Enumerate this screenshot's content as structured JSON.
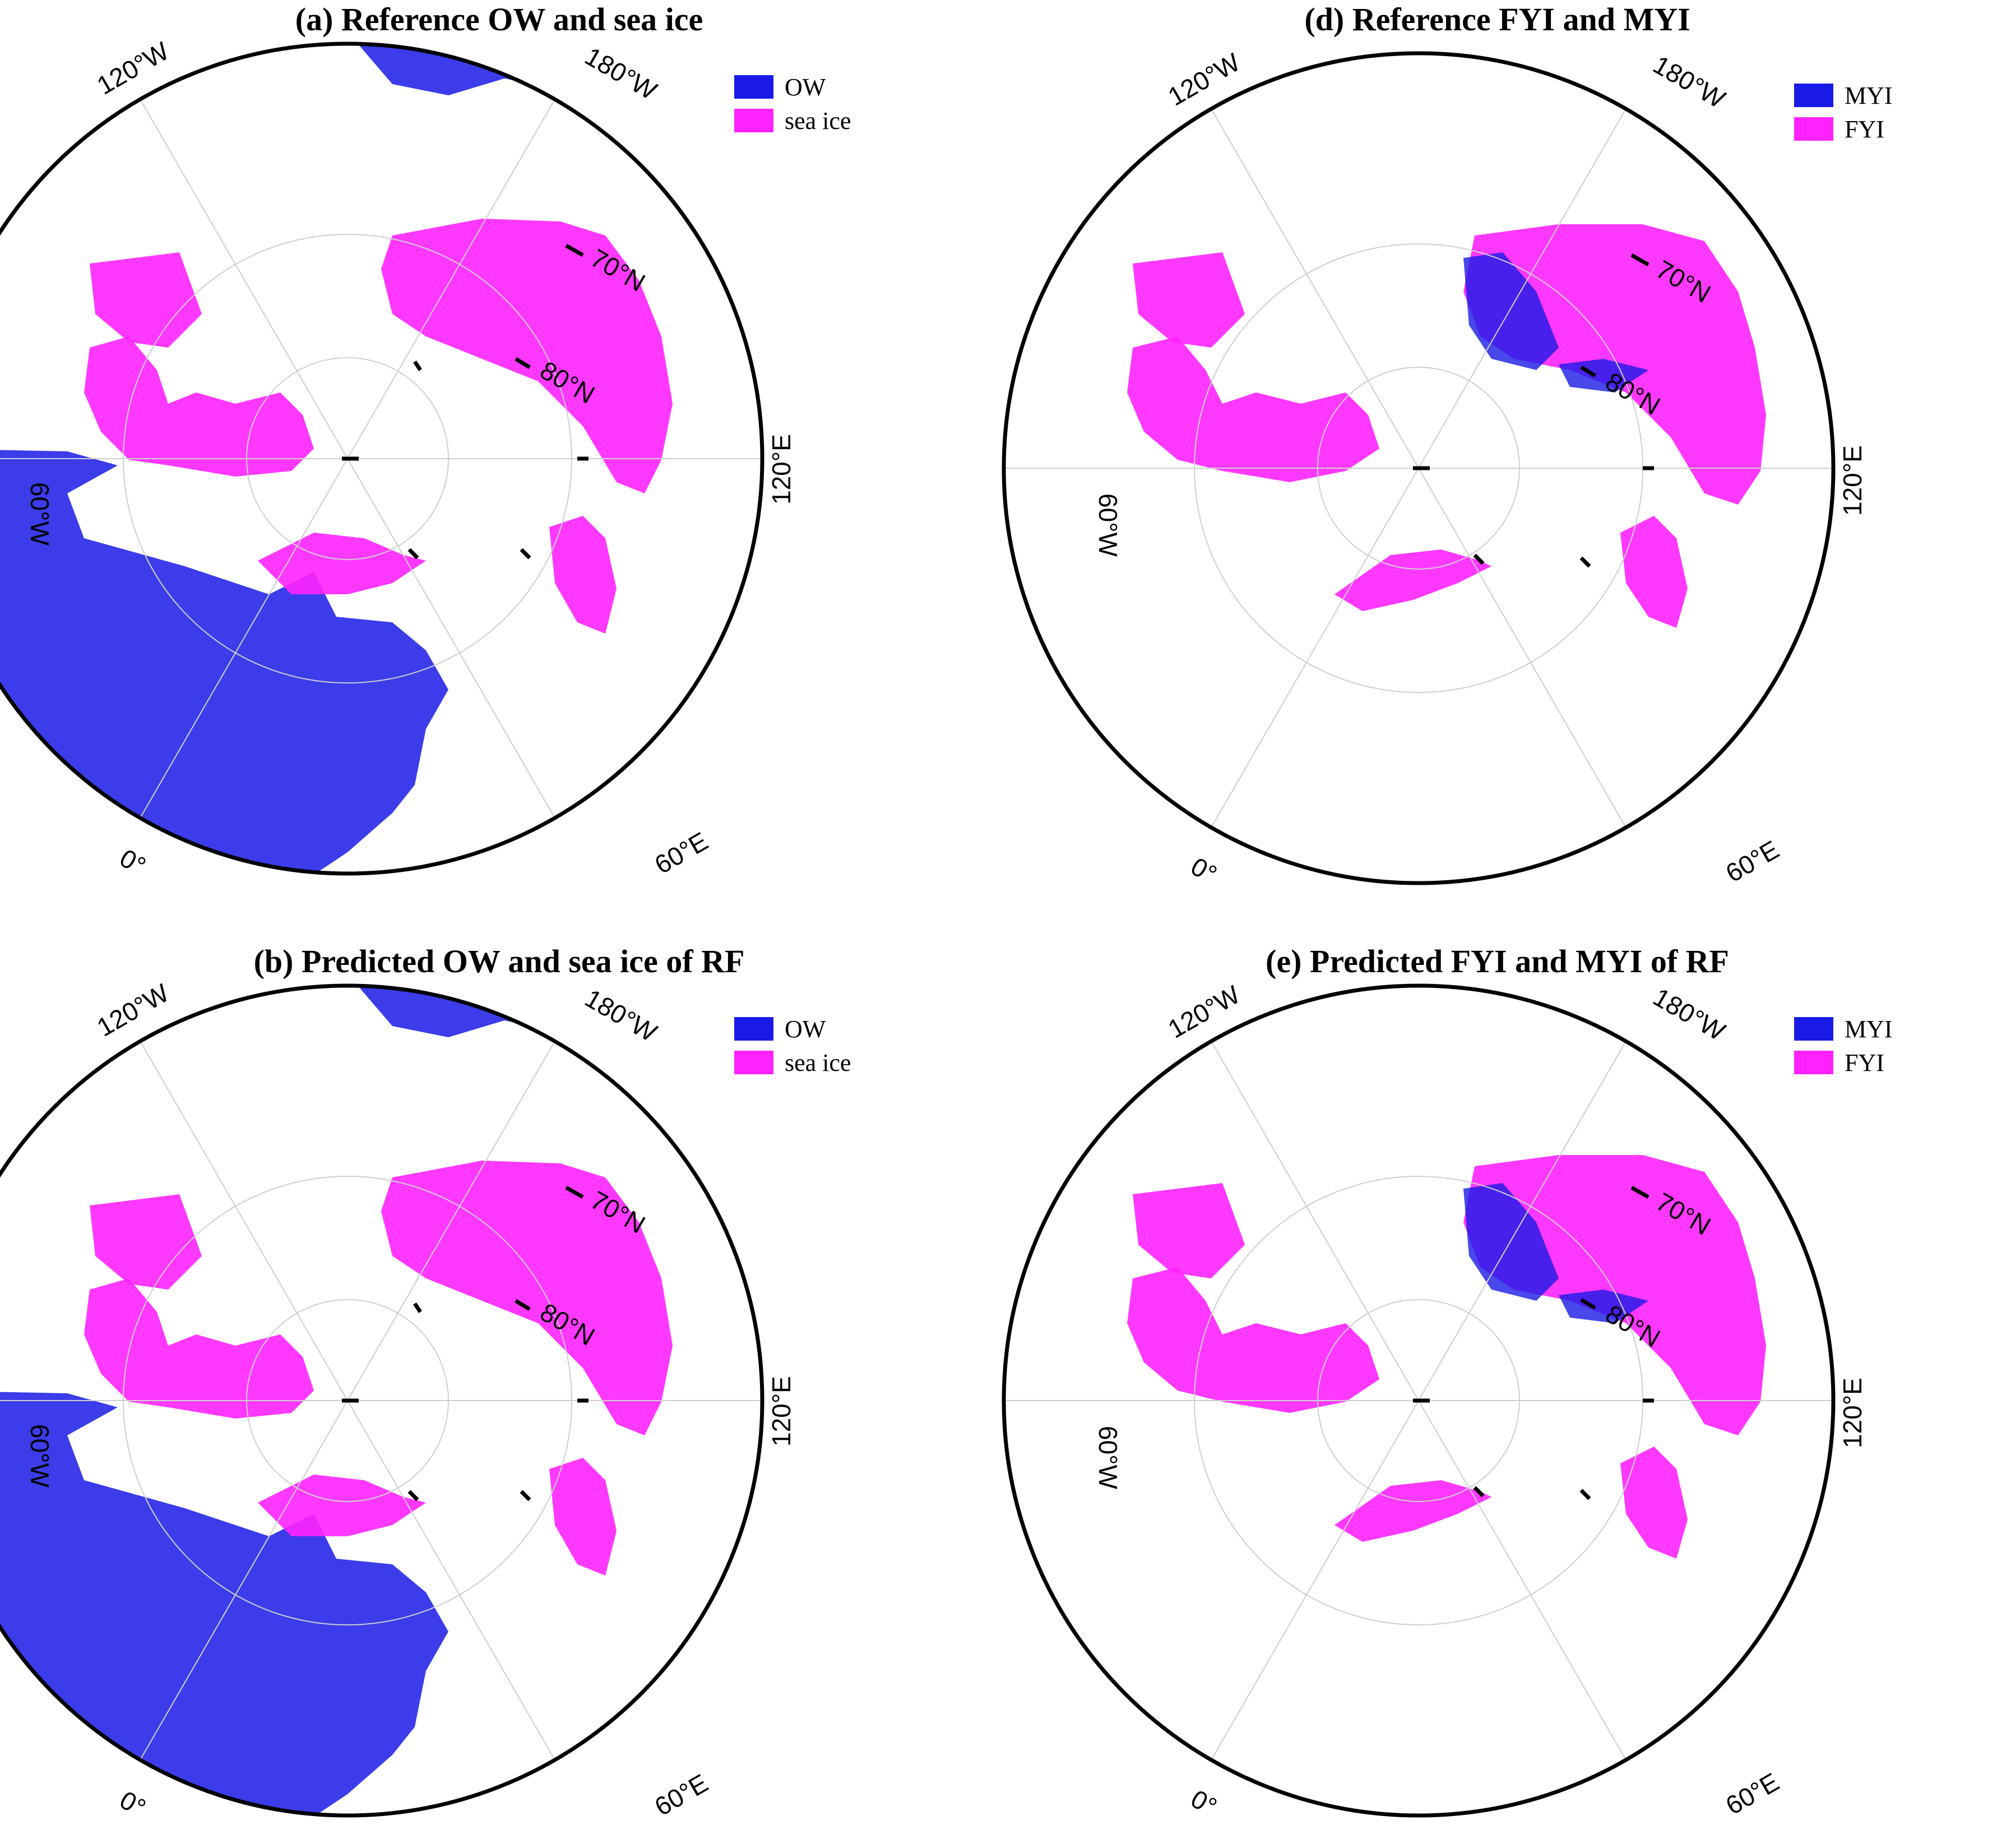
{
  "colors": {
    "ow": "#1a1ae6",
    "ice": "#ff22ff",
    "myi": "#1a1ae6",
    "fyi": "#ff22ff",
    "grid": "#cfcfcf",
    "border": "#000000"
  },
  "lat_labels": [
    "70°N",
    "80°N"
  ],
  "lon_labels": [
    "120°W",
    "180°W",
    "60°W",
    "120°E",
    "0°",
    "60°E"
  ],
  "panels": [
    {
      "title": "(a) Reference OW and sea ice",
      "legend": [
        {
          "label": "OW",
          "color": "#1a1ae6"
        },
        {
          "label": "sea ice",
          "color": "#ff22ff"
        }
      ]
    },
    {
      "title": "(d) Reference FYI and MYI",
      "legend": [
        {
          "label": "MYI",
          "color": "#1a1ae6"
        },
        {
          "label": "FYI",
          "color": "#ff22ff"
        }
      ]
    },
    {
      "title": "(b) Predicted OW and sea ice of RF",
      "legend": [
        {
          "label": "OW",
          "color": "#1a1ae6"
        },
        {
          "label": "sea ice",
          "color": "#ff22ff"
        }
      ]
    },
    {
      "title": "(e) Predicted FYI and MYI of RF",
      "legend": [
        {
          "label": "MYI",
          "color": "#1a1ae6"
        },
        {
          "label": "FYI",
          "color": "#ff22ff"
        }
      ]
    }
  ]
}
